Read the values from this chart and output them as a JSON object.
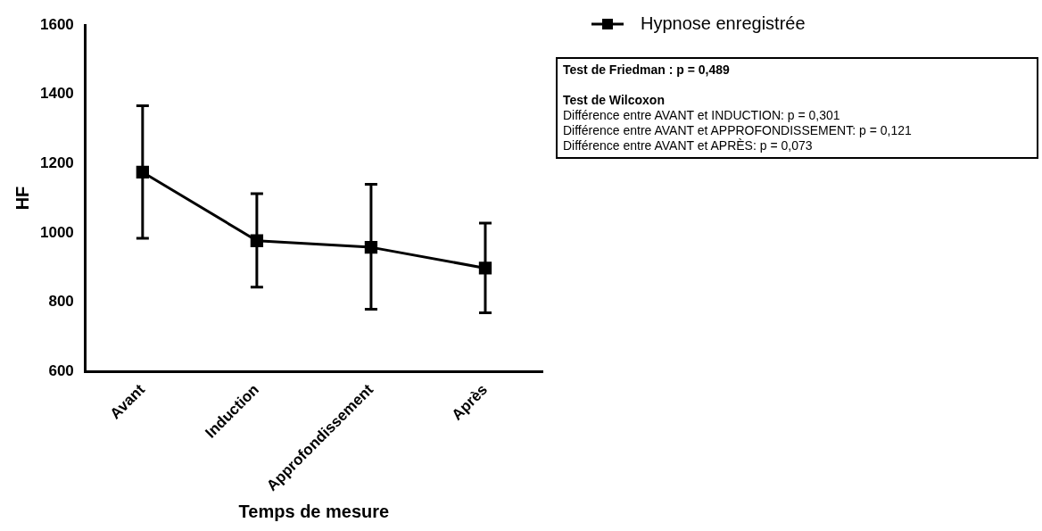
{
  "chart_data": {
    "type": "line",
    "xlabel": "Temps de mesure",
    "ylabel": "HF",
    "categories": [
      "Avant",
      "Induction",
      "Approfondissement",
      "Après"
    ],
    "series": [
      {
        "name": "Hypnose enregistrée",
        "color": "#000000",
        "values": [
          1175,
          977,
          958,
          898
        ],
        "errors": [
          [
            984,
            1367
          ],
          [
            843,
            1113
          ],
          [
            779,
            1140
          ],
          [
            769,
            1028
          ]
        ]
      }
    ],
    "ylim": [
      600,
      1600
    ],
    "yticks": [
      600,
      800,
      1000,
      1200,
      1400,
      1600
    ],
    "grid": false,
    "legend": "top right",
    "marker": "square",
    "line_style": "solid",
    "annotations": [
      "Test de Friedman : p = 0,489",
      "Test de Wilcoxon",
      "Différence entre AVANT et INDUCTION: p = 0,301",
      "Différence entre AVANT et APPROFONDISSEMENT: p = 0,121",
      "Différence entre AVANT et APRÈS: p = 0,073"
    ]
  }
}
